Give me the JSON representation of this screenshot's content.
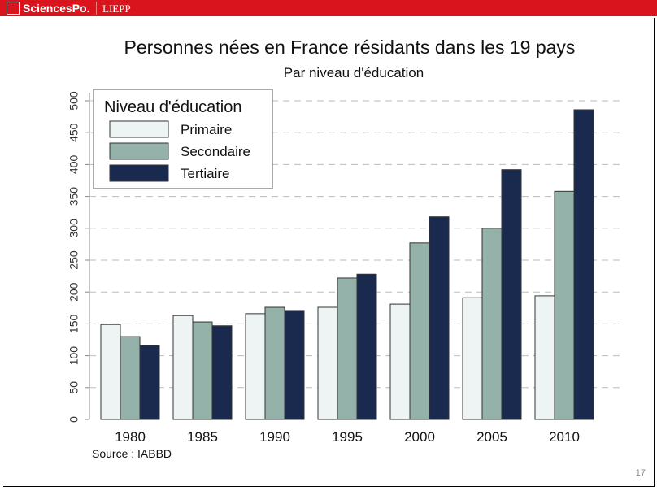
{
  "header": {
    "brand": "SciencesPo.",
    "lab": "LIEPP"
  },
  "page_number": "17",
  "chart_data": {
    "type": "bar",
    "title": "Personnes nées en France résidants dans les 19 pays",
    "subtitle": "Par niveau d'éducation",
    "xlabel": "",
    "ylabel": "",
    "ylim": [
      0,
      500
    ],
    "yticks": [
      0,
      50,
      100,
      150,
      200,
      250,
      300,
      350,
      400,
      450,
      500
    ],
    "categories": [
      "1980",
      "1985",
      "1990",
      "1995",
      "2000",
      "2005",
      "2010"
    ],
    "legend_title": "Niveau d'éducation",
    "legend_position": "top-left",
    "grid": "horizontal dashed",
    "series": [
      {
        "name": "Primaire",
        "color": "#eef4f4",
        "values": [
          149,
          163,
          166,
          176,
          181,
          191,
          194
        ]
      },
      {
        "name": "Secondaire",
        "color": "#94b2a9",
        "values": [
          130,
          153,
          176,
          222,
          277,
          300,
          358
        ]
      },
      {
        "name": "Tertiaire",
        "color": "#1a2a4f",
        "values": [
          116,
          147,
          171,
          228,
          318,
          392,
          486
        ]
      }
    ],
    "source": "Source : IABBD"
  }
}
